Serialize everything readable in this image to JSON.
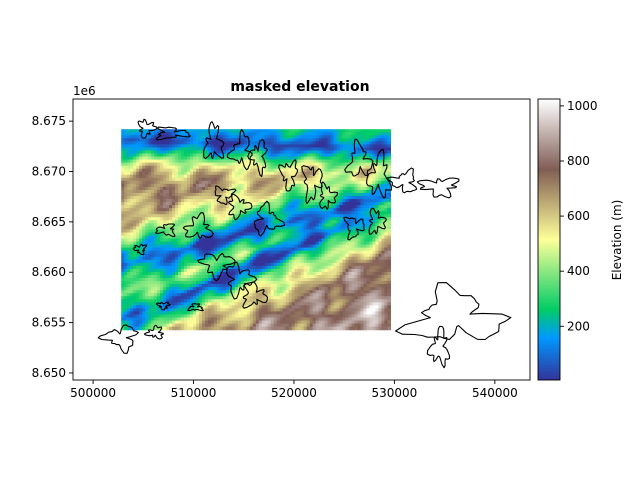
{
  "chart_data": {
    "type": "heatmap",
    "title": "masked elevation",
    "xlabel": "",
    "ylabel": "",
    "y_offset_label": "1e6",
    "xlim": [
      498000,
      543500
    ],
    "ylim": [
      8649300,
      8677200
    ],
    "x_ticks": [
      500000,
      510000,
      520000,
      530000,
      540000
    ],
    "x_tick_labels": [
      "500000",
      "510000",
      "520000",
      "530000",
      "540000"
    ],
    "y_ticks": [
      8650000,
      8655000,
      8660000,
      8665000,
      8670000,
      8675000
    ],
    "y_tick_labels": [
      "8.650",
      "8.655",
      "8.660",
      "8.665",
      "8.670",
      "8.675"
    ],
    "raster_extent": {
      "x": [
        502800,
        529600
      ],
      "y": [
        8654300,
        8674200
      ]
    },
    "colorbar": {
      "label": "Elevation (m)",
      "colormap": "terrain",
      "range": [
        5,
        1025
      ],
      "ticks": [
        200,
        400,
        600,
        800,
        1000
      ],
      "tick_labels": [
        "200",
        "400",
        "600",
        "800",
        "1000"
      ]
    },
    "grid": false,
    "legend": "none",
    "outline_color": "#000000"
  }
}
